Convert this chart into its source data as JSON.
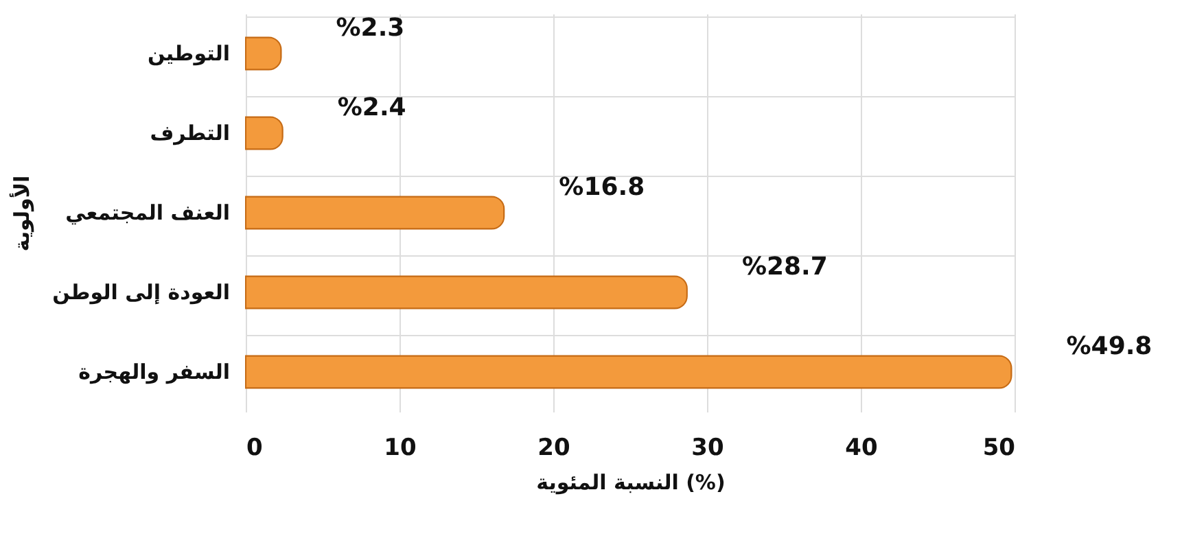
{
  "chart_data": {
    "type": "bar",
    "orientation": "horizontal",
    "categories": [
      "التوطين",
      "التطرف",
      "العنف المجتمعي",
      "العودة إلى الوطن",
      "السفر والهجرة"
    ],
    "values": [
      2.3,
      2.4,
      16.8,
      28.7,
      49.8
    ],
    "value_labels": [
      "%2.3",
      "%2.4",
      "%16.8",
      "%28.7",
      "%49.8"
    ],
    "color": "#f39a3c",
    "xlim": [
      0,
      50
    ],
    "xticks": [
      0,
      10,
      20,
      30,
      40,
      50
    ],
    "xlabel": "النسبة المئوية (%)",
    "ylabel": "الأولوية",
    "grid": true
  }
}
